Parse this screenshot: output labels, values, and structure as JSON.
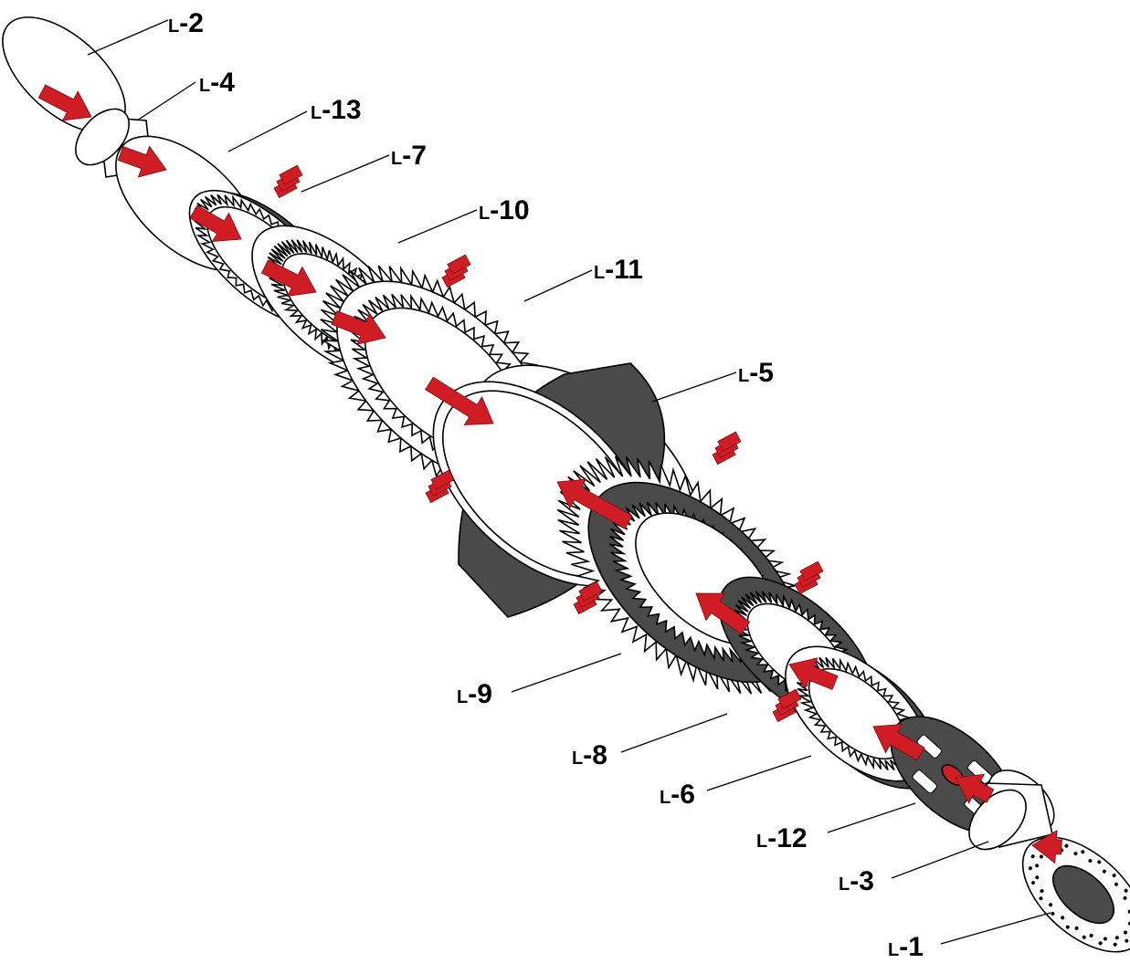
{
  "diagram": {
    "type": "exploded-assembly",
    "colors": {
      "arrow": "#d01c24",
      "dark_part": "#4a4a4a",
      "outline": "#000000",
      "part_fill": "#ffffff"
    },
    "labels": [
      {
        "id": "L-2",
        "prefix": "L",
        "number": "-2"
      },
      {
        "id": "L-4",
        "prefix": "L",
        "number": "-4"
      },
      {
        "id": "L-13",
        "prefix": "L",
        "number": "-13"
      },
      {
        "id": "L-7",
        "prefix": "L",
        "number": "-7"
      },
      {
        "id": "L-10",
        "prefix": "L",
        "number": "-10"
      },
      {
        "id": "L-11",
        "prefix": "L",
        "number": "-11"
      },
      {
        "id": "L-5",
        "prefix": "L",
        "number": "-5"
      },
      {
        "id": "L-9",
        "prefix": "L",
        "number": "-9"
      },
      {
        "id": "L-8",
        "prefix": "L",
        "number": "-8"
      },
      {
        "id": "L-6",
        "prefix": "L",
        "number": "-6"
      },
      {
        "id": "L-12",
        "prefix": "L",
        "number": "-12"
      },
      {
        "id": "L-3",
        "prefix": "L",
        "number": "-3"
      },
      {
        "id": "L-1",
        "prefix": "L",
        "number": "-1"
      }
    ]
  }
}
